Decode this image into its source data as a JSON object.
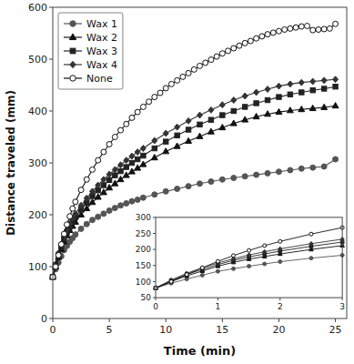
{
  "chart_data": [
    {
      "type": "line",
      "xlabel": "Time (min)",
      "ylabel": "Distance traveled (mm)",
      "xlim": [
        0,
        26
      ],
      "ylim": [
        0,
        600
      ],
      "xticks": [
        0,
        5,
        10,
        15,
        20,
        25
      ],
      "yticks": [
        0,
        100,
        200,
        300,
        400,
        500,
        600
      ],
      "legend": "upper left",
      "series": [
        {
          "name": "Wax 1",
          "color": "#555555",
          "marker": "circle",
          "line_style": "solid",
          "x": [
            0.0,
            0.25,
            0.5,
            0.75,
            1.0,
            1.25,
            1.5,
            1.75,
            2.0,
            2.5,
            3.0,
            3.5,
            4.0,
            4.5,
            5.0,
            5.5,
            6.0,
            6.5,
            7.0,
            7.5,
            8.0,
            9.0,
            10.0,
            11.0,
            12.0,
            13.0,
            14.0,
            15.0,
            16.0,
            17.0,
            18.0,
            19.0,
            20.0,
            21.0,
            22.0,
            23.0,
            24.0,
            25.0
          ],
          "values": [
            80,
            95,
            108,
            120,
            132,
            140,
            148,
            155,
            162,
            173,
            182,
            190,
            196,
            202,
            208,
            213,
            218,
            222,
            226,
            229,
            233,
            239,
            245,
            250,
            255,
            260,
            264,
            268,
            271,
            274,
            277,
            280,
            283,
            286,
            289,
            291,
            293,
            307
          ]
        },
        {
          "name": "Wax 2",
          "color": "#111111",
          "marker": "triangle",
          "line_style": "solid",
          "x": [
            0.0,
            0.25,
            0.5,
            0.75,
            1.0,
            1.25,
            1.5,
            1.75,
            2.0,
            2.5,
            3.0,
            3.5,
            4.0,
            4.5,
            5.0,
            5.5,
            6.0,
            6.5,
            7.0,
            7.5,
            8.0,
            9.0,
            10.0,
            11.0,
            12.0,
            13.0,
            14.0,
            15.0,
            16.0,
            17.0,
            18.0,
            19.0,
            20.0,
            21.0,
            22.0,
            23.0,
            24.0,
            25.0
          ],
          "values": [
            80,
            100,
            118,
            133,
            148,
            160,
            170,
            178,
            186,
            200,
            212,
            224,
            234,
            243,
            252,
            260,
            268,
            276,
            283,
            290,
            297,
            310,
            322,
            332,
            342,
            351,
            360,
            368,
            376,
            383,
            389,
            394,
            398,
            401,
            403,
            405,
            407,
            410
          ]
        },
        {
          "name": "Wax 3",
          "color": "#222222",
          "marker": "square",
          "line_style": "solid",
          "x": [
            0.0,
            0.25,
            0.5,
            0.75,
            1.0,
            1.25,
            1.5,
            1.75,
            2.0,
            2.5,
            3.0,
            3.5,
            4.0,
            4.5,
            5.0,
            5.5,
            6.0,
            6.5,
            7.0,
            7.5,
            8.0,
            9.0,
            10.0,
            11.0,
            12.0,
            13.0,
            14.0,
            15.0,
            16.0,
            17.0,
            18.0,
            19.0,
            20.0,
            21.0,
            22.0,
            23.0,
            24.0,
            25.0
          ],
          "values": [
            80,
            103,
            122,
            138,
            153,
            166,
            177,
            186,
            195,
            210,
            223,
            236,
            247,
            257,
            267,
            276,
            284,
            292,
            300,
            307,
            314,
            328,
            341,
            353,
            364,
            374,
            383,
            392,
            400,
            408,
            415,
            421,
            427,
            432,
            436,
            440,
            443,
            447
          ]
        },
        {
          "name": "Wax 4",
          "color": "#333333",
          "marker": "diamond",
          "line_style": "solid",
          "x": [
            0.0,
            0.25,
            0.5,
            0.75,
            1.0,
            1.25,
            1.5,
            1.75,
            2.0,
            2.5,
            3.0,
            3.5,
            4.0,
            4.5,
            5.0,
            5.5,
            6.0,
            6.5,
            7.0,
            7.5,
            8.0,
            9.0,
            10.0,
            11.0,
            12.0,
            13.0,
            14.0,
            15.0,
            16.0,
            17.0,
            18.0,
            19.0,
            20.0,
            21.0,
            22.0,
            23.0,
            24.0,
            25.0
          ],
          "values": [
            80,
            105,
            126,
            143,
            158,
            171,
            183,
            193,
            202,
            218,
            232,
            245,
            257,
            268,
            278,
            287,
            296,
            305,
            313,
            321,
            328,
            343,
            357,
            369,
            381,
            392,
            402,
            412,
            421,
            429,
            436,
            442,
            448,
            452,
            455,
            457,
            459,
            461
          ]
        },
        {
          "name": "None",
          "color": "#111111",
          "marker": "open-circle",
          "line_style": "solid",
          "x": [
            0.0,
            0.25,
            0.5,
            0.75,
            1.0,
            1.25,
            1.5,
            1.75,
            2.0,
            2.5,
            3.0,
            3.5,
            4.0,
            4.5,
            5.0,
            5.5,
            6.0,
            6.5,
            7.0,
            7.5,
            8.0,
            8.5,
            9.0,
            9.5,
            10.0,
            10.5,
            11.0,
            11.5,
            12.0,
            12.5,
            13.0,
            13.5,
            14.0,
            14.5,
            15.0,
            15.5,
            16.0,
            16.5,
            17.0,
            17.5,
            18.0,
            18.5,
            19.0,
            19.5,
            20.0,
            20.5,
            21.0,
            21.5,
            22.0,
            22.5,
            23.0,
            23.5,
            24.0,
            24.5,
            25.0
          ],
          "values": [
            80,
            100,
            122,
            143,
            163,
            181,
            197,
            212,
            225,
            248,
            268,
            287,
            305,
            321,
            336,
            350,
            363,
            375,
            387,
            398,
            408,
            418,
            427,
            435,
            444,
            452,
            459,
            466,
            473,
            480,
            487,
            493,
            499,
            505,
            511,
            516,
            521,
            526,
            531,
            535,
            540,
            544,
            548,
            551,
            554,
            557,
            559,
            561,
            563,
            564,
            556,
            557,
            558,
            559,
            568
          ]
        }
      ]
    },
    {
      "type": "line",
      "xlim": [
        0,
        3
      ],
      "ylim": [
        50,
        300
      ],
      "xticks": [
        0,
        1,
        2,
        3
      ],
      "yticks": [
        50,
        100,
        150,
        200,
        250,
        300
      ],
      "series": [
        {
          "name": "Wax 1",
          "color": "#555555",
          "marker": "circle",
          "line_style": "solid",
          "x": [
            0.0,
            0.25,
            0.5,
            0.75,
            1.0,
            1.25,
            1.5,
            1.75,
            2.0,
            2.5,
            3.0
          ],
          "values": [
            80,
            95,
            108,
            120,
            132,
            140,
            148,
            155,
            162,
            173,
            182
          ]
        },
        {
          "name": "Wax 2",
          "color": "#111111",
          "marker": "triangle",
          "line_style": "solid",
          "x": [
            0.0,
            0.25,
            0.5,
            0.75,
            1.0,
            1.25,
            1.5,
            1.75,
            2.0,
            2.5,
            3.0
          ],
          "values": [
            80,
            100,
            118,
            133,
            148,
            160,
            170,
            178,
            186,
            200,
            212
          ]
        },
        {
          "name": "Wax 3",
          "color": "#222222",
          "marker": "square",
          "line_style": "solid",
          "x": [
            0.0,
            0.25,
            0.5,
            0.75,
            1.0,
            1.25,
            1.5,
            1.75,
            2.0,
            2.5,
            3.0
          ],
          "values": [
            80,
            103,
            122,
            138,
            153,
            166,
            177,
            186,
            195,
            210,
            223
          ]
        },
        {
          "name": "Wax 4",
          "color": "#333333",
          "marker": "diamond",
          "line_style": "solid",
          "x": [
            0.0,
            0.25,
            0.5,
            0.75,
            1.0,
            1.25,
            1.5,
            1.75,
            2.0,
            2.5,
            3.0
          ],
          "values": [
            80,
            105,
            126,
            143,
            158,
            171,
            183,
            193,
            202,
            218,
            232
          ]
        },
        {
          "name": "None",
          "color": "#111111",
          "marker": "open-circle",
          "line_style": "solid",
          "x": [
            0.0,
            0.25,
            0.5,
            0.75,
            1.0,
            1.25,
            1.5,
            1.75,
            2.0,
            2.5,
            3.0
          ],
          "values": [
            80,
            100,
            122,
            143,
            163,
            181,
            197,
            212,
            225,
            248,
            268
          ]
        }
      ]
    }
  ]
}
